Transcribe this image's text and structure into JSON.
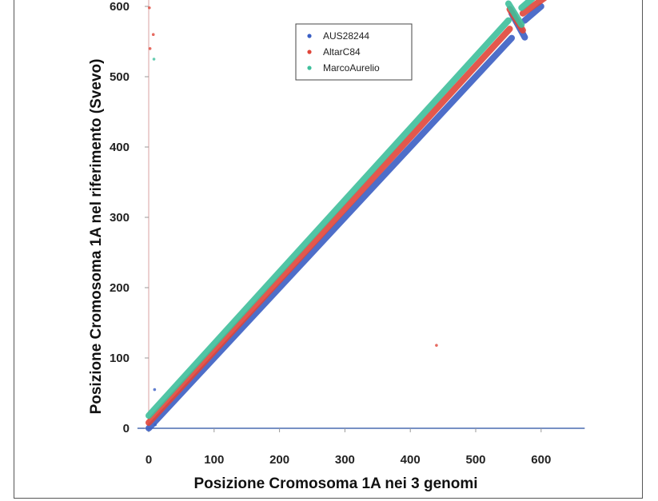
{
  "chart_data": {
    "type": "scatter",
    "title": "",
    "xlabel": "Posizione Cromosoma 1A  nei 3 genomi",
    "ylabel": "Posizione Cromosoma 1A  nel riferimento (Svevo)",
    "xlim": [
      -5,
      630
    ],
    "ylim": [
      -8,
      645
    ],
    "xticks": [
      0,
      100,
      200,
      300,
      400,
      500,
      600
    ],
    "yticks": [
      0,
      100,
      200,
      300,
      400,
      500,
      600
    ],
    "grid": false,
    "legend_position": "top-center",
    "series": [
      {
        "name": "AUS28244",
        "color": "#3b5fc4",
        "segments": [
          [
            [
              0,
              0
            ],
            [
              555,
              555
            ]
          ],
          [
            [
              555,
              590
            ],
            [
              575,
              556
            ]
          ],
          [
            [
              575,
              580
            ],
            [
              600,
              600
            ]
          ]
        ],
        "outliers": [
          [
            9,
            55
          ],
          [
            10,
            5
          ]
        ]
      },
      {
        "name": "AltarC84",
        "color": "#e0463a",
        "segments": [
          [
            [
              0,
              8
            ],
            [
              552,
              568
            ]
          ],
          [
            [
              552,
              596
            ],
            [
              572,
              566
            ]
          ],
          [
            [
              572,
              590
            ],
            [
              605,
              612
            ]
          ]
        ],
        "outliers": [
          [
            1,
            598
          ],
          [
            2,
            540
          ],
          [
            7,
            560
          ],
          [
            440,
            118
          ]
        ]
      },
      {
        "name": "MarcoAurelio",
        "color": "#3fbf9c",
        "segments": [
          [
            [
              0,
              18
            ],
            [
              550,
              580
            ]
          ],
          [
            [
              550,
              604
            ],
            [
              570,
              574
            ]
          ],
          [
            [
              570,
              598
            ],
            [
              600,
              622
            ]
          ]
        ],
        "outliers": [
          [
            8,
            525
          ]
        ]
      }
    ]
  }
}
